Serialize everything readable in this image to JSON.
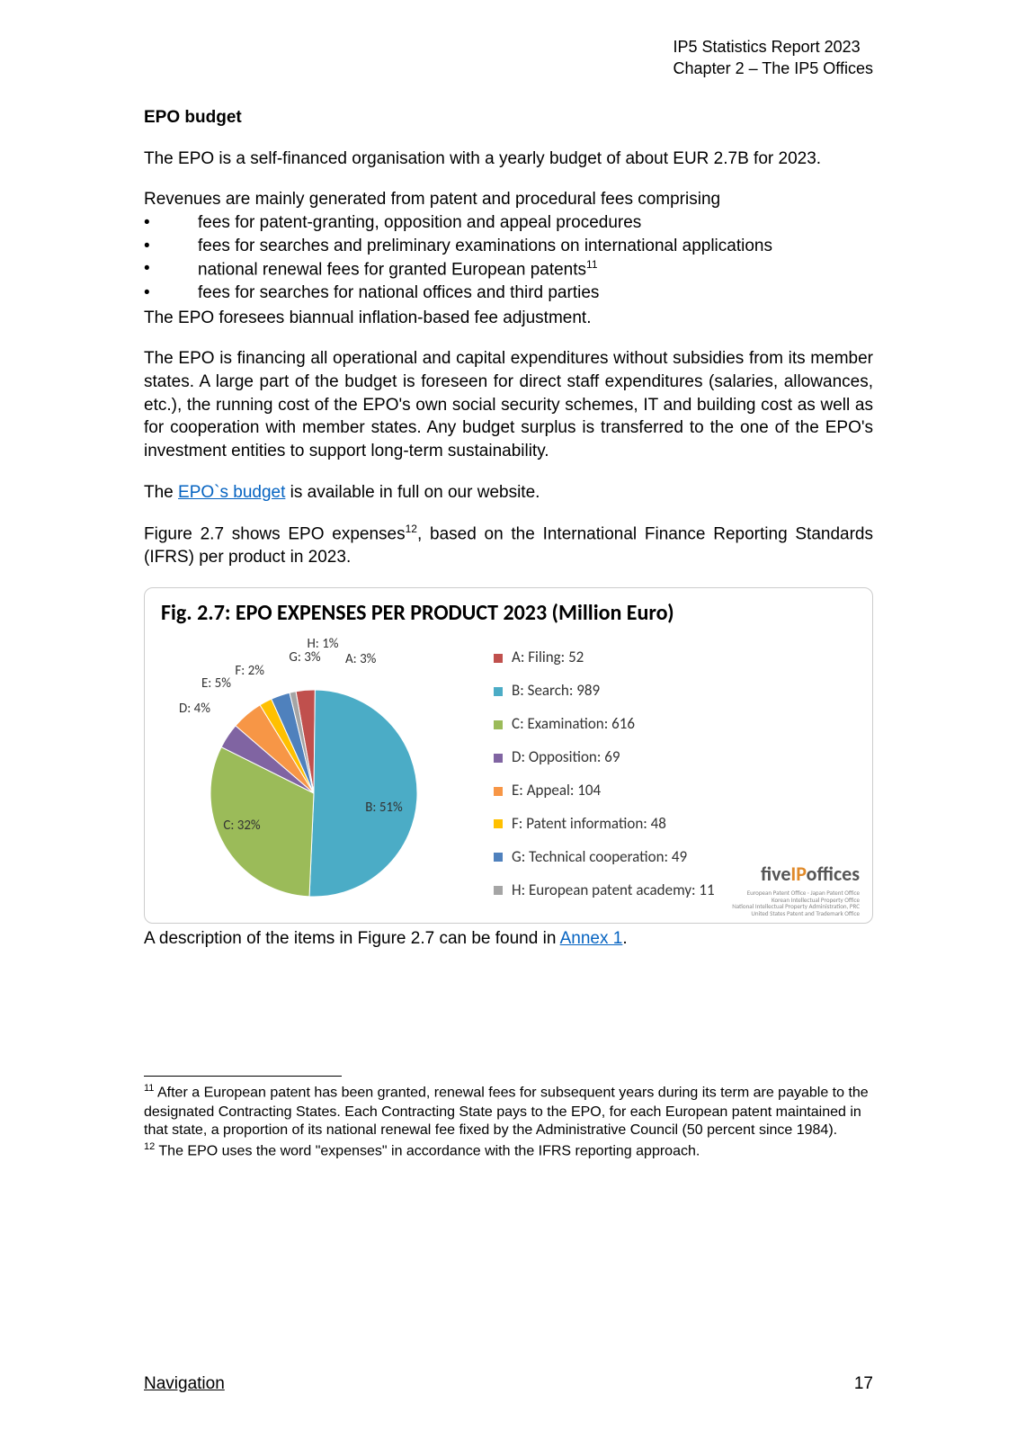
{
  "header": {
    "line1": "IP5 Statistics Report 2023",
    "line2": "Chapter 2 – The IP5 Offices"
  },
  "section_title": "EPO budget",
  "para1": "The EPO is a self-financed organisation with a yearly budget of about EUR 2.7B for 2023.",
  "para2_intro": "Revenues are mainly generated from patent and procedural fees comprising",
  "bullets": [
    "fees for patent-granting, opposition and appeal procedures",
    "fees for searches and preliminary examinations on international applications",
    "national renewal fees for granted European patents",
    "fees for searches for national offices and third parties"
  ],
  "bullet3_sup": "11",
  "para2_after": "The EPO foresees biannual inflation-based fee adjustment.",
  "para3": "The EPO is financing all operational and capital expenditures without subsidies from its member states. A large part of the budget is foreseen for direct staff expenditures (salaries, allowances, etc.), the running cost of the EPO's own social security schemes, IT and building cost as well as for cooperation with member states. Any budget surplus is transferred to the one of the EPO's investment entities to support long-term sustainability.",
  "para4_pre": "The ",
  "para4_link": "EPO`s budget",
  "para4_post": " is available in full on our website.",
  "para5_pre": "Figure 2.7 shows EPO expenses",
  "para5_sup": "12",
  "para5_post": ", based on the International Finance Reporting Standards (IFRS) per product in 2023.",
  "figure": {
    "title": "Fig. 2.7: EPO EXPENSES PER PRODUCT 2023 (Million Euro)",
    "type": "pie",
    "slices": [
      {
        "key": "A",
        "label": "A: Filing: 52",
        "pct": 3,
        "color": "#c0504d",
        "slice_label": "A: 3%"
      },
      {
        "key": "B",
        "label": "B: Search: 989",
        "pct": 51,
        "color": "#4bacc6",
        "slice_label": "B: 51%"
      },
      {
        "key": "C",
        "label": "C: Examination: 616",
        "pct": 32,
        "color": "#9bbb59",
        "slice_label": "C: 32%"
      },
      {
        "key": "D",
        "label": "D: Opposition: 69",
        "pct": 4,
        "color": "#8064a2",
        "slice_label": "D: 4%"
      },
      {
        "key": "E",
        "label": "E: Appeal: 104",
        "pct": 5,
        "color": "#f79646",
        "slice_label": "E: 5%"
      },
      {
        "key": "F",
        "label": "F: Patent information: 48",
        "pct": 2,
        "color": "#ffc000",
        "slice_label": "F: 2%"
      },
      {
        "key": "G",
        "label": "G: Technical cooperation: 49",
        "pct": 3,
        "color": "#4f81bd",
        "slice_label": "G: 3%"
      },
      {
        "key": "H",
        "label": "H: European patent academy: 11",
        "pct": 1,
        "color": "#a5a5a5",
        "slice_label": "H: 1%"
      }
    ],
    "brand_pre": "five",
    "brand_mid": "IP",
    "brand_post": "offices",
    "brand_sub": "European Patent Office · Japan Patent Office\nKorean Intellectual Property Office\nNational Intellectual Property Administration, PRC\nUnited States Patent and Trademark Office"
  },
  "caption_pre": "A description of the items in Figure 2.7 can be found in ",
  "caption_link": "Annex 1",
  "caption_post": ".",
  "footnote11_sup": "11",
  "footnote11": " After a European patent has been granted, renewal fees for subsequent years during its term are payable to the designated Contracting States. Each Contracting State pays to the EPO, for each European patent maintained in that state, a proportion of its national renewal fee fixed by the Administrative Council (50 percent since 1984).",
  "footnote12_sup": "12",
  "footnote12": " The EPO uses the word \"expenses\" in accordance with the IFRS reporting approach.",
  "footer": {
    "nav": "Navigation",
    "page": "17"
  }
}
